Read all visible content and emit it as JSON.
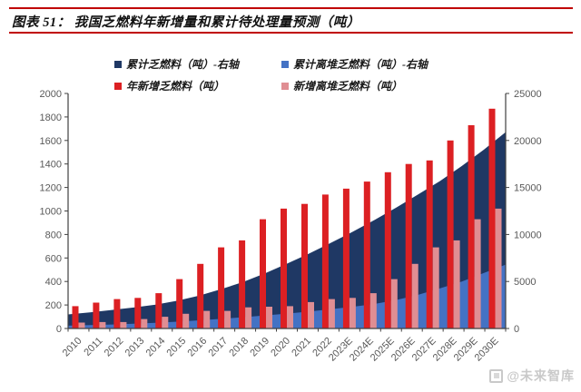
{
  "figure": {
    "label": "图表 51：",
    "title": "图表 51：  我国乏燃料年新增量和累计待处理量预测（吨）",
    "watermark": "@未来智库"
  },
  "colors": {
    "rule_red": "#c00000",
    "navy": "#1f3864",
    "blue": "#4472c4",
    "red": "#dc2023",
    "pink": "#e08e93",
    "axis_line": "#404040",
    "axis_text": "#595959",
    "watermark_gray": "#c9c9c9"
  },
  "chart_data": {
    "type": "combo-area-bar",
    "title": "我国乏燃料年新增量和累计待处理量预测（吨）",
    "categories": [
      "2010",
      "2011",
      "2012",
      "2013",
      "2014",
      "2015",
      "2016",
      "2017",
      "2018",
      "2019",
      "2020",
      "2021",
      "2022",
      "2023E",
      "2024E",
      "2025E",
      "2026E",
      "2027E",
      "2028E",
      "2029E",
      "2030E"
    ],
    "series": [
      {
        "id": "cumulative-spent-fuel",
        "name": "累计乏燃料（吨）-右轴",
        "type": "area",
        "axis": "right",
        "color": "#1f3864",
        "values": [
          1500,
          1720,
          1970,
          2230,
          2530,
          2950,
          3500,
          4190,
          4940,
          5870,
          6890,
          7950,
          9090,
          10280,
          11530,
          12860,
          14260,
          15690,
          17290,
          19020,
          20890
        ]
      },
      {
        "id": "cumulative-offsite-spent-fuel",
        "name": "累计离堆乏燃料（吨）-右轴",
        "type": "area",
        "axis": "right",
        "color": "#4472c4",
        "values": [
          300,
          360,
          420,
          500,
          600,
          720,
          870,
          1020,
          1200,
          1390,
          1580,
          1800,
          2050,
          2310,
          2610,
          3030,
          3580,
          4270,
          5000,
          5900,
          6800
        ]
      },
      {
        "id": "annual-new-spent-fuel",
        "name": "年新增乏燃料（吨）",
        "type": "bar",
        "axis": "left",
        "color": "#dc2023",
        "values": [
          190,
          220,
          250,
          260,
          300,
          420,
          550,
          690,
          750,
          930,
          1020,
          1060,
          1140,
          1190,
          1250,
          1330,
          1400,
          1430,
          1600,
          1730,
          1870
        ]
      },
      {
        "id": "new-offsite-spent-fuel",
        "name": "新增离堆乏燃料（吨）",
        "type": "bar",
        "axis": "left",
        "color": "#e08e93",
        "values": [
          50,
          55,
          55,
          80,
          100,
          125,
          150,
          150,
          180,
          185,
          190,
          225,
          250,
          260,
          300,
          420,
          550,
          690,
          750,
          930,
          1020
        ]
      }
    ],
    "left_axis": {
      "min": 0,
      "max": 2000,
      "step": 200,
      "ticks": [
        "0",
        "200",
        "400",
        "600",
        "800",
        "1000",
        "1200",
        "1400",
        "1600",
        "1800",
        "2000"
      ]
    },
    "right_axis": {
      "min": 0,
      "max": 25000,
      "step": 5000,
      "ticks": [
        "0",
        "5000",
        "10000",
        "15000",
        "20000",
        "25000"
      ]
    },
    "legend_position": "top",
    "grid": false
  }
}
